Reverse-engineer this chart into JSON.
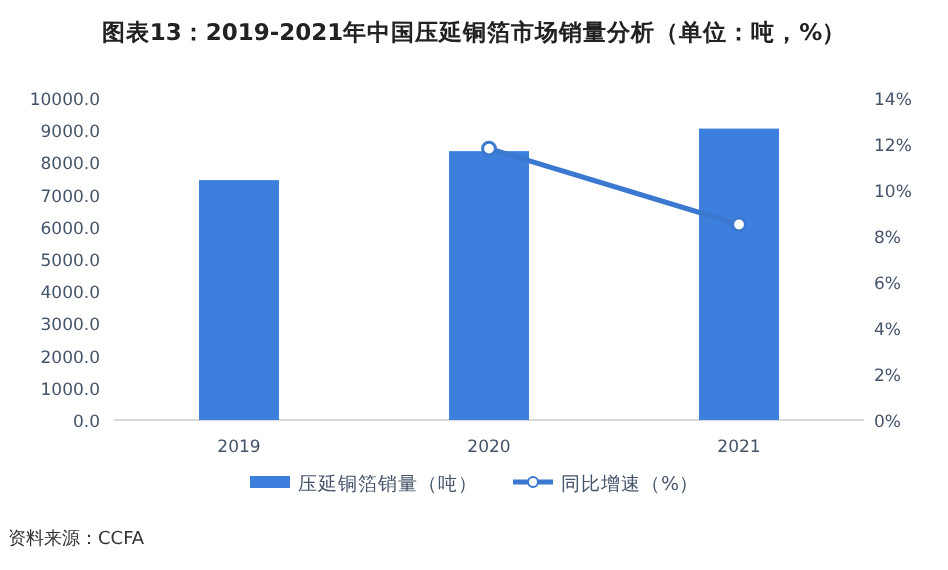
{
  "chart_data": {
    "type": "bar",
    "title": "图表13：2019-2021年中国压延铜箔市场销量分析（单位：吨，%）",
    "categories": [
      "2019",
      "2020",
      "2021"
    ],
    "series": [
      {
        "name": "压延铜箔销量（吨）",
        "color": "#3d7fdc",
        "values": [
          7450,
          8350,
          9050
        ]
      },
      {
        "name": "同比增速（%）",
        "type": "line",
        "axis": "y2",
        "color": "#3b78d0",
        "marker": "circle",
        "values": [
          null,
          11.8,
          8.5
        ]
      }
    ],
    "ylim": [
      0,
      10000
    ],
    "yticks": [
      {
        "value": 0,
        "label": "0.0"
      },
      {
        "value": 1000,
        "label": "1000.0"
      },
      {
        "value": 2000,
        "label": "2000.0"
      },
      {
        "value": 3000,
        "label": "3000.0"
      },
      {
        "value": 4000,
        "label": "4000.0"
      },
      {
        "value": 5000,
        "label": "5000.0"
      },
      {
        "value": 6000,
        "label": "6000.0"
      },
      {
        "value": 7000,
        "label": "7000.0"
      },
      {
        "value": 8000,
        "label": "8000.0"
      },
      {
        "value": 9000,
        "label": "9000.0"
      },
      {
        "value": 10000,
        "label": "10000.0"
      }
    ],
    "y2lim": [
      0,
      14
    ],
    "y2ticks": [
      {
        "value": 0,
        "label": "0%"
      },
      {
        "value": 2,
        "label": "2%"
      },
      {
        "value": 4,
        "label": "4%"
      },
      {
        "value": 6,
        "label": "6%"
      },
      {
        "value": 8,
        "label": "8%"
      },
      {
        "value": 10,
        "label": "10%"
      },
      {
        "value": 12,
        "label": "12%"
      },
      {
        "value": 14,
        "label": "14%"
      }
    ],
    "legend": "bottom",
    "annotations": [
      "资料来源：CCFA"
    ]
  }
}
